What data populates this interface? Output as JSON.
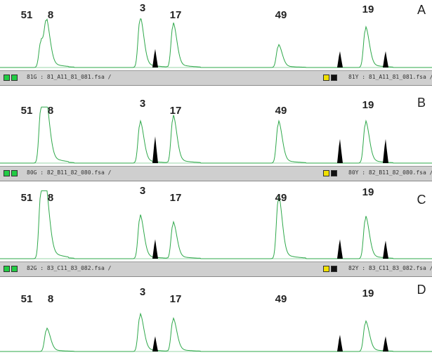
{
  "colors": {
    "trace": "#2ea84a",
    "size_std": "#000000",
    "bar_bg": "#cfcfcf",
    "green_sq": "#22cc44",
    "yellow_sq": "#f0e000",
    "black_sq": "#111111"
  },
  "chart_data": [
    {
      "type": "line",
      "panel": "A",
      "peaks": [
        {
          "label": "51",
          "x": 58,
          "h": 0.55
        },
        {
          "label": "8",
          "x": 66,
          "h": 0.78
        },
        {
          "label": "3",
          "x": 199,
          "h": 1.0
        },
        {
          "label": "17",
          "x": 246,
          "h": 0.88
        },
        {
          "label": "49",
          "x": 396,
          "h": 0.45
        },
        {
          "label": "19",
          "x": 520,
          "h": 0.8
        }
      ],
      "std": [
        {
          "x": 221,
          "h": 0.4
        },
        {
          "x": 484,
          "h": 0.35
        },
        {
          "x": 549,
          "h": 0.35
        }
      ],
      "bar": {
        "left_text": "81G : 81_A11_81_081.fsa /",
        "right_text": "81Y : 81_A11_81_081.fsa /"
      }
    },
    {
      "type": "line",
      "panel": "B",
      "peaks": [
        {
          "label": "51",
          "x": 58,
          "h": 1.0
        },
        {
          "label": "8",
          "x": 66,
          "h": 0.75
        },
        {
          "label": "3",
          "x": 199,
          "h": 0.72
        },
        {
          "label": "17",
          "x": 246,
          "h": 0.82
        },
        {
          "label": "49",
          "x": 396,
          "h": 0.72
        },
        {
          "label": "19",
          "x": 520,
          "h": 0.72
        }
      ],
      "std": [
        {
          "x": 221,
          "h": 0.5
        },
        {
          "x": 484,
          "h": 0.45
        },
        {
          "x": 549,
          "h": 0.45
        }
      ],
      "bar": {
        "left_text": "80G : 82_B11_82_080.fsa /",
        "right_text": "80Y : 82_B11_82_080.fsa /"
      }
    },
    {
      "type": "line",
      "panel": "C",
      "peaks": [
        {
          "label": "51",
          "x": 58,
          "h": 1.0
        },
        {
          "label": "8",
          "x": 66,
          "h": 0.65
        },
        {
          "label": "3",
          "x": 199,
          "h": 0.62
        },
        {
          "label": "17",
          "x": 246,
          "h": 0.52
        },
        {
          "label": "49",
          "x": 396,
          "h": 0.9
        },
        {
          "label": "19",
          "x": 520,
          "h": 0.6
        }
      ],
      "std": [
        {
          "x": 221,
          "h": 0.3
        },
        {
          "x": 484,
          "h": 0.3
        },
        {
          "x": 549,
          "h": 0.28
        }
      ],
      "bar": {
        "left_text": "82G : 83_C11_83_082.fsa /",
        "right_text": "82Y : 83_C11_83_082.fsa /"
      }
    },
    {
      "type": "line",
      "panel": "D",
      "peaks": [
        {
          "label": "51",
          "x": 58,
          "h": 0.0
        },
        {
          "label": "8",
          "x": 66,
          "h": 0.42
        },
        {
          "label": "3",
          "x": 199,
          "h": 0.68
        },
        {
          "label": "17",
          "x": 246,
          "h": 0.6
        },
        {
          "label": "49",
          "x": 396,
          "h": 0.0
        },
        {
          "label": "19",
          "x": 520,
          "h": 0.55
        }
      ],
      "std": [
        {
          "x": 221,
          "h": 0.3
        },
        {
          "x": 484,
          "h": 0.33
        },
        {
          "x": 549,
          "h": 0.3
        }
      ],
      "bar": null
    }
  ]
}
